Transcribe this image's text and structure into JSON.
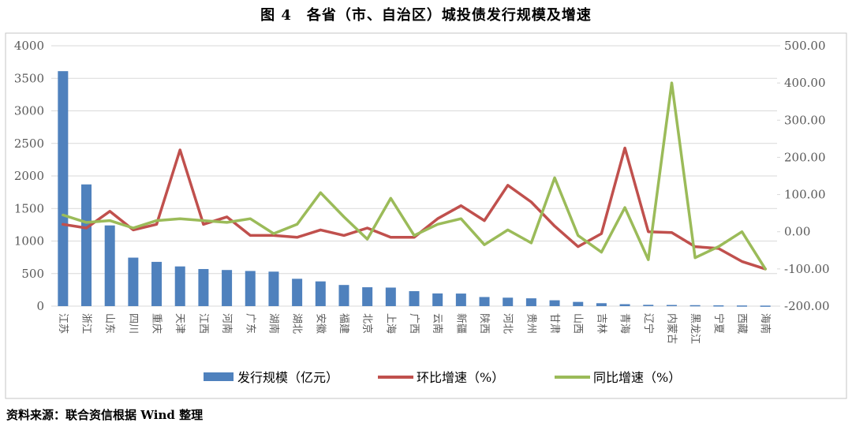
{
  "page": {
    "title": "图 4　各省（市、自治区）城投债发行规模及增速",
    "source_note": "资料来源：联合资信根据 Wind 整理"
  },
  "chart_data": {
    "type": "combo-bar-line",
    "title": "图 4　各省（市、自治区）城投债发行规模及增速",
    "categories": [
      "江苏",
      "浙江",
      "山东",
      "四川",
      "重庆",
      "天津",
      "江西",
      "河南",
      "广东",
      "湖南",
      "湖北",
      "安徽",
      "福建",
      "北京",
      "上海",
      "广西",
      "云南",
      "新疆",
      "陕西",
      "河北",
      "贵州",
      "甘肃",
      "山西",
      "吉林",
      "青海",
      "辽宁",
      "内蒙古",
      "黑龙江",
      "宁夏",
      "西藏",
      "海南"
    ],
    "series": [
      {
        "name": "发行规模（亿元）",
        "type": "bar",
        "axis": "left",
        "color": "#4F81BD",
        "values": [
          3610,
          1870,
          1240,
          745,
          680,
          610,
          570,
          555,
          540,
          530,
          420,
          380,
          325,
          290,
          285,
          230,
          195,
          193,
          140,
          130,
          120,
          90,
          65,
          45,
          30,
          20,
          18,
          15,
          12,
          10,
          8
        ]
      },
      {
        "name": "环比增速（%）",
        "type": "line",
        "axis": "right",
        "color": "#C0504D",
        "values": [
          20,
          10,
          55,
          5,
          20,
          220,
          20,
          40,
          -10,
          -10,
          -15,
          5,
          -10,
          10,
          -15,
          -15,
          35,
          70,
          30,
          125,
          80,
          15,
          -40,
          -5,
          225,
          0,
          -2,
          -40,
          -45,
          -80,
          -100
        ]
      },
      {
        "name": "同比增速（%）",
        "type": "line",
        "axis": "right",
        "color": "#9BBB59",
        "values": [
          45,
          25,
          30,
          10,
          30,
          35,
          30,
          25,
          35,
          -5,
          20,
          105,
          40,
          -20,
          90,
          -10,
          20,
          35,
          -35,
          5,
          -30,
          145,
          -10,
          -55,
          65,
          -75,
          400,
          -70,
          -40,
          0,
          -100
        ]
      }
    ],
    "left_axis": {
      "min": 0,
      "max": 4000,
      "step": 500,
      "tick_format": "integer"
    },
    "right_axis": {
      "min": -200,
      "max": 500,
      "step": 100,
      "tick_format": "2-decimals"
    },
    "grid": true,
    "legend_position": "bottom-inside",
    "colors": {
      "grid": "#D9D9D9",
      "axis_text": "#595959",
      "frame_border": "#C6C6C6",
      "background": "#FFFFFF"
    }
  }
}
